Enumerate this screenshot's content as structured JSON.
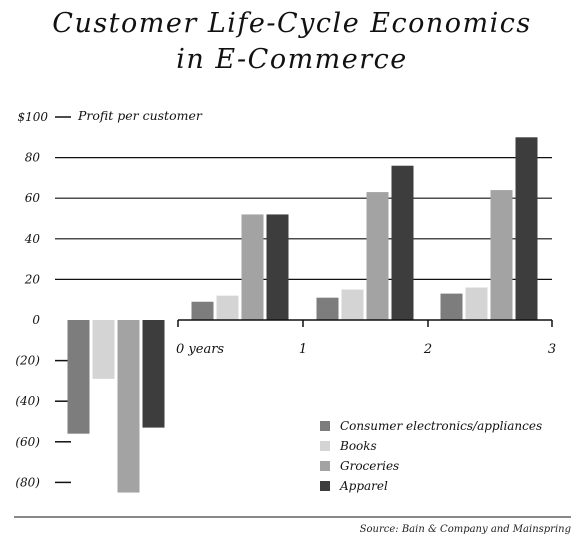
{
  "chart_data": {
    "type": "bar",
    "title_lines": [
      "Customer Life-Cycle Economics",
      "in E-Commerce"
    ],
    "ylabel": "Profit per customer",
    "y_tick_labels": [
      "$100",
      "80",
      "60",
      "40",
      "20",
      "0",
      "(20)",
      "(40)",
      "(60)",
      "(80)"
    ],
    "y_tick_values": [
      100,
      80,
      60,
      40,
      20,
      0,
      -20,
      -40,
      -60,
      -80
    ],
    "ylim": [
      -85,
      100
    ],
    "categories": [
      "0",
      "1",
      "2",
      "3"
    ],
    "x_tick_labels": [
      "0  years",
      "1",
      "2",
      "3"
    ],
    "gridlines": [
      20,
      40,
      60,
      80
    ],
    "series": [
      {
        "name": "Consumer electronics/appliances",
        "color": "#7d7d7d",
        "values": [
          -56,
          9,
          11,
          13
        ]
      },
      {
        "name": "Books",
        "color": "#d4d4d4",
        "values": [
          -29,
          12,
          15,
          16
        ]
      },
      {
        "name": "Groceries",
        "color": "#a3a3a3",
        "values": [
          -85,
          52,
          63,
          64
        ]
      },
      {
        "name": "Apparel",
        "color": "#3d3d3d",
        "values": [
          -53,
          52,
          76,
          90
        ]
      }
    ],
    "legend_position": "bottom-right",
    "source": "Source: Bain & Company and Mainspring"
  }
}
